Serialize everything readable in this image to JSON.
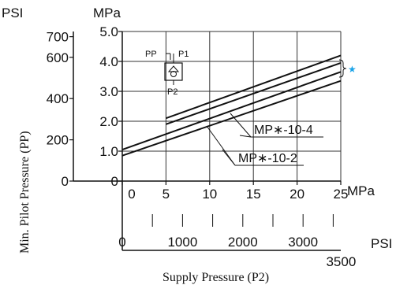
{
  "chart_data": {
    "type": "line",
    "xlabel": "Supply Pressure (P2)",
    "ylabel": "Min. Pilot Pressure (PP)",
    "x_units": {
      "primary": "MPa",
      "secondary": "PSI"
    },
    "y_units": {
      "primary": "MPa",
      "secondary": "PSI"
    },
    "xlim": [
      0,
      25
    ],
    "ylim": [
      0,
      5.0
    ],
    "x_ticks_mpa": [
      "0",
      "5",
      "10",
      "15",
      "20",
      "25"
    ],
    "x_ticks_psi": [
      "0",
      "1000",
      "2000",
      "3000",
      "3500"
    ],
    "y_ticks_mpa": [
      "0",
      "1.0",
      "2.0",
      "3.0",
      "4.0",
      "5.0"
    ],
    "y_ticks_psi": [
      "0",
      "200",
      "400",
      "600",
      "700"
    ],
    "grid": true,
    "series": [
      {
        "name": "MP∗-10-4",
        "x": [
          5,
          25
        ],
        "y": [
          2.1,
          4.2
        ]
      },
      {
        "name": "MP∗-10-4",
        "x": [
          5,
          25
        ],
        "y": [
          1.9,
          3.95
        ]
      },
      {
        "name": "MP∗-10-2",
        "x": [
          0,
          25
        ],
        "y": [
          1.05,
          3.65
        ]
      },
      {
        "name": "MP∗-10-2",
        "x": [
          0,
          25
        ],
        "y": [
          0.85,
          3.35
        ]
      }
    ],
    "annotations": {
      "label_10_4": "MP∗-10-4",
      "label_10_2": "MP∗-10-2",
      "star": "★"
    },
    "symbol": {
      "pp": "PP",
      "p1": "P1",
      "p2": "P2"
    }
  },
  "colors": {
    "ink": "#111111",
    "star": "#1aa3e8",
    "grid": "#333333"
  }
}
